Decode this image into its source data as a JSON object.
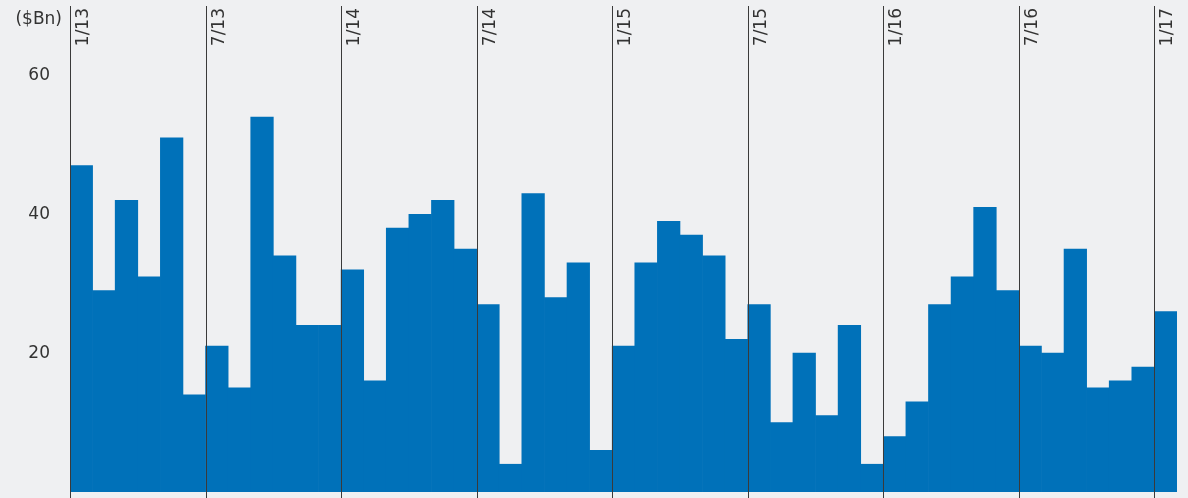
{
  "chart_data": {
    "type": "bar",
    "ylabel": "($Bn)",
    "categories": [
      "1/13",
      null,
      null,
      null,
      null,
      null,
      "7/13",
      null,
      null,
      null,
      null,
      null,
      "1/14",
      null,
      null,
      null,
      null,
      null,
      "7/14",
      null,
      null,
      null,
      null,
      null,
      "1/15",
      null,
      null,
      null,
      null,
      null,
      "7/15",
      null,
      null,
      null,
      null,
      null,
      "1/16",
      null,
      null,
      null,
      null,
      null,
      "7/16",
      null,
      null,
      null,
      null,
      null,
      "1/17"
    ],
    "values": [
      47,
      29,
      42,
      31,
      51,
      14,
      21,
      15,
      54,
      34,
      24,
      24,
      32,
      16,
      38,
      40,
      42,
      35,
      27,
      4,
      43,
      28,
      33,
      6,
      21,
      33,
      39,
      37,
      34,
      22,
      27,
      10,
      20,
      11,
      24,
      4,
      8,
      13,
      27,
      31,
      41,
      29,
      21,
      20,
      35,
      15,
      16,
      18,
      26
    ],
    "color": "#0071b9",
    "ylim": [
      0,
      70
    ],
    "yticks": [
      20,
      40,
      60
    ],
    "grid": "x",
    "legend": false
  }
}
